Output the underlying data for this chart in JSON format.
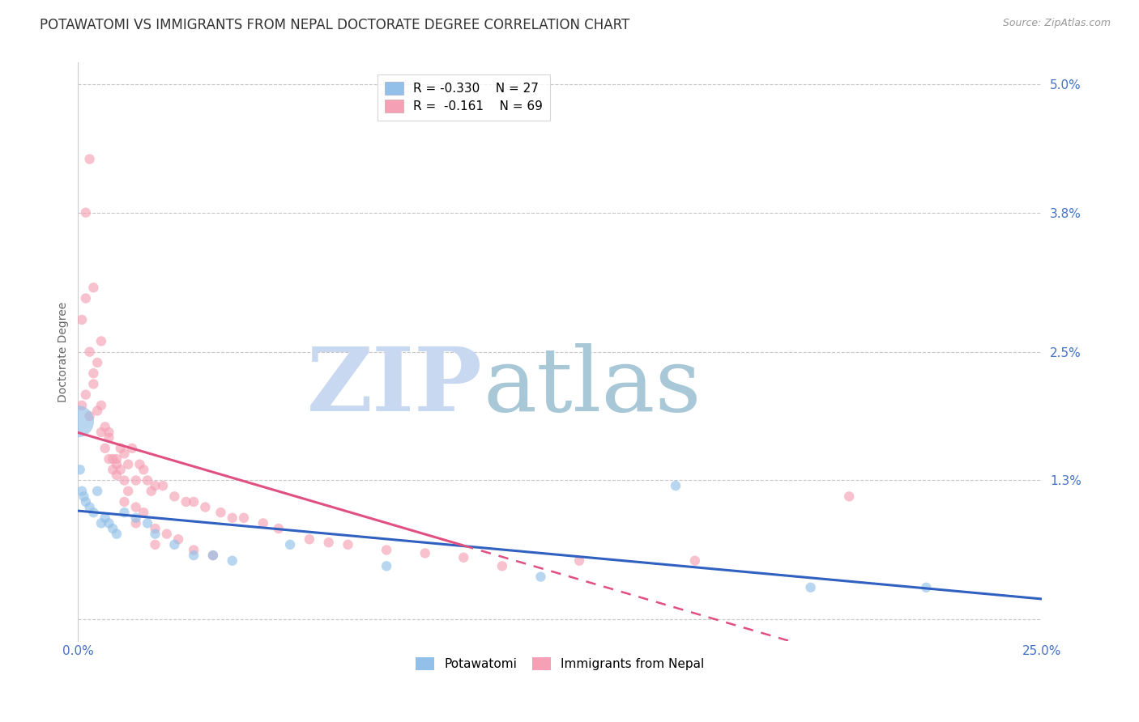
{
  "title": "POTAWATOMI VS IMMIGRANTS FROM NEPAL DOCTORATE DEGREE CORRELATION CHART",
  "source": "Source: ZipAtlas.com",
  "ylabel": "Doctorate Degree",
  "xlim": [
    0.0,
    0.25
  ],
  "ylim": [
    -0.002,
    0.052
  ],
  "yticks": [
    0.0,
    0.013,
    0.025,
    0.038,
    0.05
  ],
  "ytick_labels": [
    "",
    "1.3%",
    "2.5%",
    "3.8%",
    "5.0%"
  ],
  "xticks": [
    0.0,
    0.25
  ],
  "xtick_labels": [
    "0.0%",
    "25.0%"
  ],
  "color_blue": "#92C0E8",
  "color_pink": "#F5A0B5",
  "color_blue_line": "#3060C0",
  "color_pink_line": "#E05080",
  "color_axis_labels": "#4472C4",
  "color_grid": "#C8C8C8",
  "watermark_zip": "ZIP",
  "watermark_atlas": "atlas",
  "watermark_color_zip": "#C8D8F0",
  "watermark_color_atlas": "#A8C8D8",
  "background_color": "#FFFFFF",
  "title_fontsize": 12,
  "axis_label_fontsize": 10,
  "tick_fontsize": 11,
  "legend_fontsize": 11,
  "potawatomi_x": [
    0.0005,
    0.001,
    0.0015,
    0.002,
    0.003,
    0.004,
    0.005,
    0.006,
    0.007,
    0.008,
    0.009,
    0.01,
    0.012,
    0.015,
    0.018,
    0.02,
    0.025,
    0.03,
    0.035,
    0.04,
    0.055,
    0.08,
    0.12,
    0.155,
    0.19,
    0.22,
    0.0
  ],
  "potawatomi_y": [
    0.014,
    0.012,
    0.0115,
    0.011,
    0.0105,
    0.01,
    0.012,
    0.009,
    0.0095,
    0.009,
    0.0085,
    0.008,
    0.01,
    0.0095,
    0.009,
    0.008,
    0.007,
    0.006,
    0.006,
    0.0055,
    0.007,
    0.005,
    0.004,
    0.0125,
    0.003,
    0.003,
    0.0185
  ],
  "nepal_x": [
    0.001,
    0.002,
    0.003,
    0.004,
    0.005,
    0.006,
    0.007,
    0.008,
    0.009,
    0.01,
    0.011,
    0.012,
    0.013,
    0.014,
    0.015,
    0.016,
    0.017,
    0.018,
    0.019,
    0.02,
    0.022,
    0.025,
    0.028,
    0.03,
    0.033,
    0.037,
    0.04,
    0.043,
    0.048,
    0.052,
    0.06,
    0.065,
    0.07,
    0.08,
    0.09,
    0.1,
    0.11,
    0.13,
    0.16,
    0.2,
    0.001,
    0.002,
    0.003,
    0.004,
    0.005,
    0.006,
    0.007,
    0.008,
    0.009,
    0.01,
    0.011,
    0.012,
    0.013,
    0.015,
    0.017,
    0.02,
    0.023,
    0.026,
    0.03,
    0.035,
    0.002,
    0.003,
    0.004,
    0.006,
    0.008,
    0.01,
    0.012,
    0.015,
    0.02
  ],
  "nepal_y": [
    0.02,
    0.021,
    0.019,
    0.022,
    0.0195,
    0.0175,
    0.016,
    0.015,
    0.014,
    0.0145,
    0.016,
    0.0155,
    0.0145,
    0.016,
    0.013,
    0.0145,
    0.014,
    0.013,
    0.012,
    0.0125,
    0.0125,
    0.0115,
    0.011,
    0.011,
    0.0105,
    0.01,
    0.0095,
    0.0095,
    0.009,
    0.0085,
    0.0075,
    0.0072,
    0.007,
    0.0065,
    0.0062,
    0.0058,
    0.005,
    0.0055,
    0.0055,
    0.0115,
    0.028,
    0.03,
    0.025,
    0.023,
    0.024,
    0.02,
    0.018,
    0.017,
    0.015,
    0.015,
    0.014,
    0.013,
    0.012,
    0.0105,
    0.01,
    0.0085,
    0.008,
    0.0075,
    0.0065,
    0.006,
    0.038,
    0.043,
    0.031,
    0.026,
    0.0175,
    0.0135,
    0.011,
    0.009,
    0.007
  ],
  "nepal_marker_sizes": [
    80,
    80,
    80,
    80,
    80,
    80,
    80,
    80,
    80,
    80,
    80,
    80,
    80,
    80,
    80,
    80,
    80,
    80,
    80,
    80,
    80,
    80,
    80,
    80,
    80,
    80,
    80,
    80,
    80,
    80,
    80,
    80,
    80,
    80,
    80,
    80,
    80,
    80,
    80,
    80,
    80,
    80,
    80,
    80,
    80,
    80,
    80,
    80,
    80,
    80,
    80,
    80,
    80,
    80,
    80,
    80,
    80,
    80,
    80,
    80,
    80,
    80,
    80,
    80,
    80,
    80,
    80,
    80,
    80
  ],
  "pot_marker_sizes": [
    80,
    80,
    80,
    80,
    80,
    80,
    80,
    80,
    80,
    80,
    80,
    80,
    80,
    80,
    80,
    80,
    80,
    80,
    80,
    80,
    80,
    80,
    80,
    80,
    80,
    80,
    800
  ]
}
